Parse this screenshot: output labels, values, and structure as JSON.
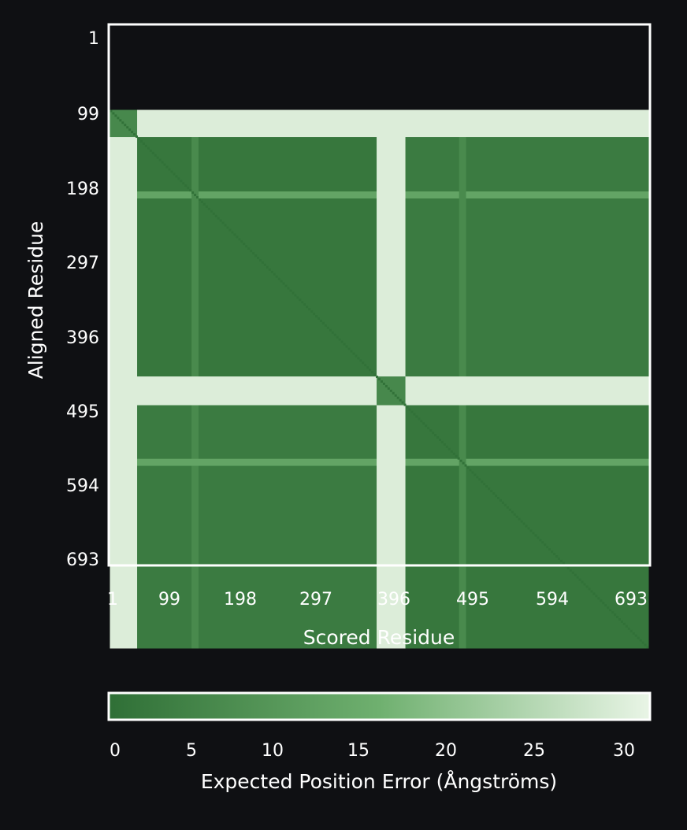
{
  "chart_data": {
    "type": "heatmap",
    "title": "",
    "xlabel": "Scored Residue",
    "ylabel": "Aligned Residue",
    "x_ticks": [
      "1",
      "99",
      "198",
      "297",
      "396",
      "495",
      "594",
      "693"
    ],
    "y_ticks": [
      "1",
      "99",
      "198",
      "297",
      "396",
      "495",
      "594",
      "693"
    ],
    "residue_range": [
      1,
      693
    ],
    "colorbar": {
      "label": "Expected Position Error (Ångströms)",
      "ticks": [
        "0",
        "5",
        "10",
        "15",
        "20",
        "25",
        "30"
      ],
      "range": [
        0,
        31.75
      ],
      "colors": {
        "low": "#2f6f36",
        "mid": "#6fb06f",
        "high": "#e9f5e6"
      }
    },
    "chains": [
      [
        1,
        347
      ],
      [
        348,
        693
      ]
    ],
    "regions": [
      {
        "scored": [
          1,
          347
        ],
        "aligned": [
          1,
          347
        ],
        "pae": 2
      },
      {
        "scored": [
          348,
          693
        ],
        "aligned": [
          348,
          693
        ],
        "pae": 2
      },
      {
        "scored": [
          348,
          693
        ],
        "aligned": [
          1,
          347
        ],
        "pae": 3
      },
      {
        "scored": [
          1,
          347
        ],
        "aligned": [
          348,
          693
        ],
        "pae": 3
      }
    ],
    "high_error_segments": [
      {
        "residues": [
          1,
          35
        ],
        "pae": 30
      },
      {
        "residues": [
          344,
          380
        ],
        "pae": 30
      }
    ],
    "flexible_loops": [
      {
        "residues": [
          106,
          114
        ],
        "pae": 13
      },
      {
        "residues": [
          450,
          458
        ],
        "pae": 13
      }
    ]
  }
}
